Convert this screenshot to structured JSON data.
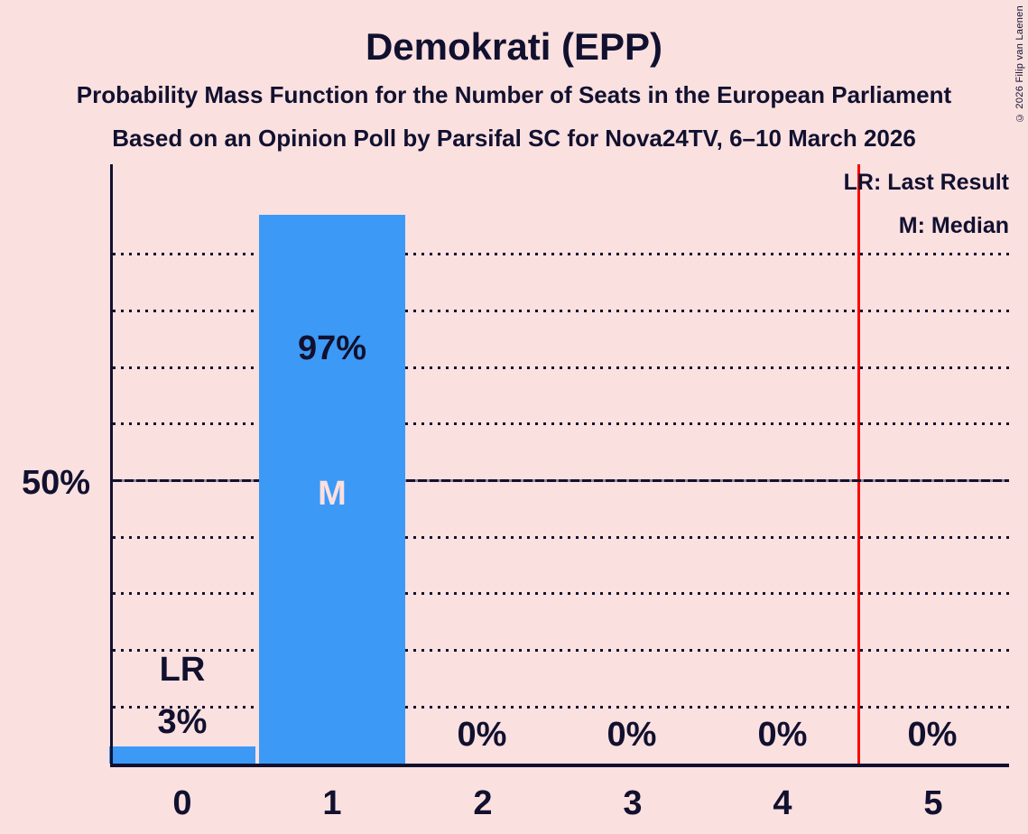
{
  "header": {
    "title": "Demokrati (EPP)",
    "subtitle1": "Probability Mass Function for the Number of Seats in the European Parliament",
    "subtitle2": "Based on an Opinion Poll by Parsifal SC for Nova24TV, 6–10 March 2026"
  },
  "legend": {
    "last_result": "LR: Last Result",
    "median": "M: Median"
  },
  "meta": {
    "copyright": "© 2026 Filip van Laenen"
  },
  "chart_data": {
    "type": "bar",
    "title": "Demokrati (EPP)",
    "categories": [
      "0",
      "1",
      "2",
      "3",
      "4",
      "5"
    ],
    "values": [
      3,
      97,
      0,
      0,
      0,
      0
    ],
    "value_labels": [
      "3%",
      "97%",
      "0%",
      "0%",
      "0%",
      "0%"
    ],
    "ylim": [
      0,
      100
    ],
    "y_tick_label": "50%",
    "y_tick_value": 50,
    "gridlines_percent": [
      10,
      20,
      30,
      40,
      60,
      70,
      80,
      90
    ],
    "median_bar_index": 1,
    "median_marker": "M",
    "last_result_bar_index": 0,
    "last_result_marker": "LR",
    "last_result_line_x": 4.5,
    "legend_position": "top-right",
    "grid": "dotted-horizontal",
    "colors": {
      "background": "#fbe0e0",
      "bar": "#3d99f6",
      "text": "#11112f",
      "last_result_line": "#ff0000",
      "median_text": "#fbe0e0"
    }
  }
}
